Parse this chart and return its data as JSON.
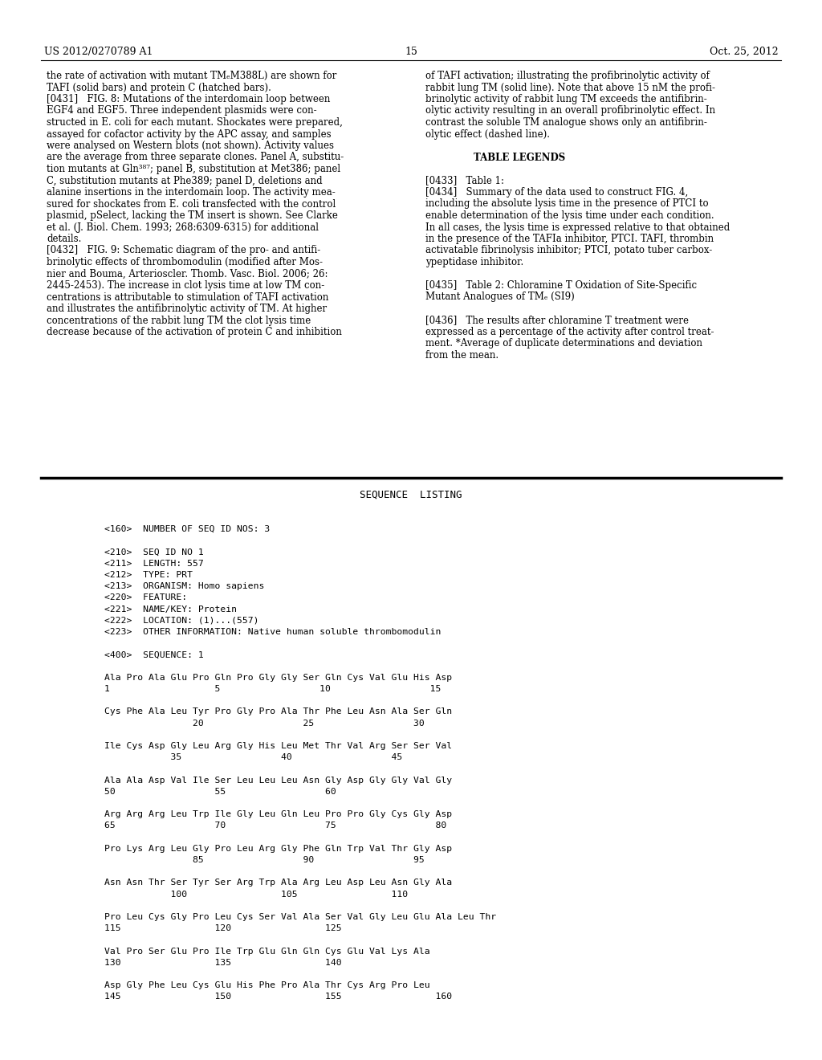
{
  "header_left": "US 2012/0270789 A1",
  "header_right": "Oct. 25, 2012",
  "page_number": "15",
  "background_color": "#ffffff",
  "text_color": "#000000",
  "body_text_left": [
    "the rate of activation with mutant TMₑM388L) are shown for",
    "TAFI (solid bars) and protein C (hatched bars).",
    "[0431]   FIG. 8: Mutations of the interdomain loop between",
    "EGF4 and EGF5. Three independent plasmids were con-",
    "structed in E. coli for each mutant. Shockates were prepared,",
    "assayed for cofactor activity by the APC assay, and samples",
    "were analysed on Western blots (not shown). Activity values",
    "are the average from three separate clones. Panel A, substitu-",
    "tion mutants at Gln³⁸⁷; panel B, substitution at Met386; panel",
    "C, substitution mutants at Phe389; panel D, deletions and",
    "alanine insertions in the interdomain loop. The activity mea-",
    "sured for shockates from E. coli transfected with the control",
    "plasmid, pSelect, lacking the TM insert is shown. See Clarke",
    "et al. (J. Biol. Chem. 1993; 268:6309-6315) for additional",
    "details.",
    "[0432]   FIG. 9: Schematic diagram of the pro- and antifi-",
    "brinolytic effects of thrombomodulin (modified after Mos-",
    "nier and Bouma, Arterioscler. Thomb. Vasc. Biol. 2006; 26:",
    "2445-2453). The increase in clot lysis time at low TM con-",
    "centrations is attributable to stimulation of TAFI activation",
    "and illustrates the antifibrinolytic activity of TM. At higher",
    "concentrations of the rabbit lung TM the clot lysis time",
    "decrease because of the activation of protein C and inhibition"
  ],
  "body_text_right": [
    "of TAFI activation; illustrating the profibrinolytic activity of",
    "rabbit lung TM (solid line). Note that above 15 nM the profi-",
    "brinolytic activity of rabbit lung TM exceeds the antifibrin-",
    "olytic activity resulting in an overall profibrinolytic effect. In",
    "contrast the soluble TM analogue shows only an antifibrin-",
    "olytic effect (dashed line).",
    "",
    "TABLE LEGENDS",
    "",
    "[0433]   Table 1:",
    "[0434]   Summary of the data used to construct FIG. 4,",
    "including the absolute lysis time in the presence of PTCI to",
    "enable determination of the lysis time under each condition.",
    "In all cases, the lysis time is expressed relative to that obtained",
    "in the presence of the TAFIa inhibitor, PTCI. TAFI, thrombin",
    "activatable fibrinolysis inhibitor; PTCI, potato tuber carbox-",
    "ypeptidase inhibitor.",
    "",
    "[0435]   Table 2: Chloramine T Oxidation of Site-Specific",
    "Mutant Analogues of TMₑ (SI9)",
    "",
    "[0436]   The results after chloramine T treatment were",
    "expressed as a percentage of the activity after control treat-",
    "ment. *Average of duplicate determinations and deviation",
    "from the mean."
  ],
  "sequence_listing_title": "SEQUENCE  LISTING",
  "sequence_lines": [
    "",
    "<160>  NUMBER OF SEQ ID NOS: 3",
    "",
    "<210>  SEQ ID NO 1",
    "<211>  LENGTH: 557",
    "<212>  TYPE: PRT",
    "<213>  ORGANISM: Homo sapiens",
    "<220>  FEATURE:",
    "<221>  NAME/KEY: Protein",
    "<222>  LOCATION: (1)...(557)",
    "<223>  OTHER INFORMATION: Native human soluble thrombomodulin",
    "",
    "<400>  SEQUENCE: 1",
    "",
    "Ala Pro Ala Glu Pro Gln Pro Gly Gly Ser Gln Cys Val Glu His Asp",
    "1                   5                  10                  15",
    "",
    "Cys Phe Ala Leu Tyr Pro Gly Pro Ala Thr Phe Leu Asn Ala Ser Gln",
    "                20                  25                  30",
    "",
    "Ile Cys Asp Gly Leu Arg Gly His Leu Met Thr Val Arg Ser Ser Val",
    "            35                  40                  45",
    "",
    "Ala Ala Asp Val Ile Ser Leu Leu Leu Asn Gly Asp Gly Gly Val Gly",
    "50                  55                  60",
    "",
    "Arg Arg Arg Leu Trp Ile Gly Leu Gln Leu Pro Pro Gly Cys Gly Asp",
    "65                  70                  75                  80",
    "",
    "Pro Lys Arg Leu Gly Pro Leu Arg Gly Phe Gln Trp Val Thr Gly Asp",
    "                85                  90                  95",
    "",
    "Asn Asn Thr Ser Tyr Ser Arg Trp Ala Arg Leu Asp Leu Asn Gly Ala",
    "            100                 105                 110",
    "",
    "Pro Leu Cys Gly Pro Leu Cys Ser Val Ala Ser Val Gly Leu Glu Ala Leu Thr",
    "115                 120                 125",
    "",
    "Val Pro Ser Glu Pro Ile Trp Glu Gln Gln Cys Glu Val Lys Ala",
    "130                 135                 140",
    "",
    "Asp Gly Phe Leu Cys Glu His Phe Pro Ala Thr Cys Arg Pro Leu",
    "145                 150                 155                 160"
  ]
}
